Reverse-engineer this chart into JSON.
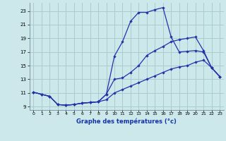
{
  "title": "Graphe des températures (°c)",
  "bg_color": "#cce8ea",
  "grid_color": "#aacccc",
  "line_color": "#2233aa",
  "xlim": [
    -0.5,
    23.5
  ],
  "ylim": [
    8.5,
    24.2
  ],
  "xticks": [
    0,
    1,
    2,
    3,
    4,
    5,
    6,
    7,
    8,
    9,
    10,
    11,
    12,
    13,
    14,
    15,
    16,
    17,
    18,
    19,
    20,
    21,
    22,
    23
  ],
  "yticks": [
    9,
    11,
    13,
    15,
    17,
    19,
    21,
    23
  ],
  "line1_x": [
    0,
    1,
    2,
    3,
    4,
    5,
    6,
    7,
    8,
    9,
    10,
    11,
    12,
    13,
    14,
    15,
    16,
    17,
    18,
    19,
    20,
    21,
    22,
    23
  ],
  "line1_y": [
    11.1,
    10.8,
    10.5,
    9.3,
    9.2,
    9.3,
    9.5,
    9.6,
    9.7,
    10.8,
    16.4,
    18.5,
    21.5,
    22.8,
    22.8,
    23.2,
    23.5,
    19.2,
    17.0,
    17.1,
    17.2,
    17.0,
    14.7,
    13.4
  ],
  "line2_x": [
    0,
    1,
    2,
    3,
    4,
    5,
    6,
    7,
    8,
    9,
    10,
    11,
    12,
    13,
    14,
    15,
    16,
    17,
    18,
    19,
    20,
    21,
    22,
    23
  ],
  "line2_y": [
    11.1,
    10.8,
    10.5,
    9.3,
    9.2,
    9.3,
    9.5,
    9.6,
    9.7,
    10.8,
    13.0,
    13.2,
    14.0,
    15.0,
    16.5,
    17.2,
    17.8,
    18.5,
    18.8,
    19.0,
    19.2,
    17.2,
    14.7,
    13.4
  ],
  "line3_x": [
    0,
    1,
    2,
    3,
    4,
    5,
    6,
    7,
    8,
    9,
    10,
    11,
    12,
    13,
    14,
    15,
    16,
    17,
    18,
    19,
    20,
    21,
    22,
    23
  ],
  "line3_y": [
    11.1,
    10.8,
    10.5,
    9.3,
    9.2,
    9.3,
    9.5,
    9.6,
    9.7,
    10.0,
    11.0,
    11.5,
    12.0,
    12.5,
    13.0,
    13.5,
    14.0,
    14.5,
    14.8,
    15.0,
    15.5,
    15.8,
    14.7,
    13.4
  ]
}
